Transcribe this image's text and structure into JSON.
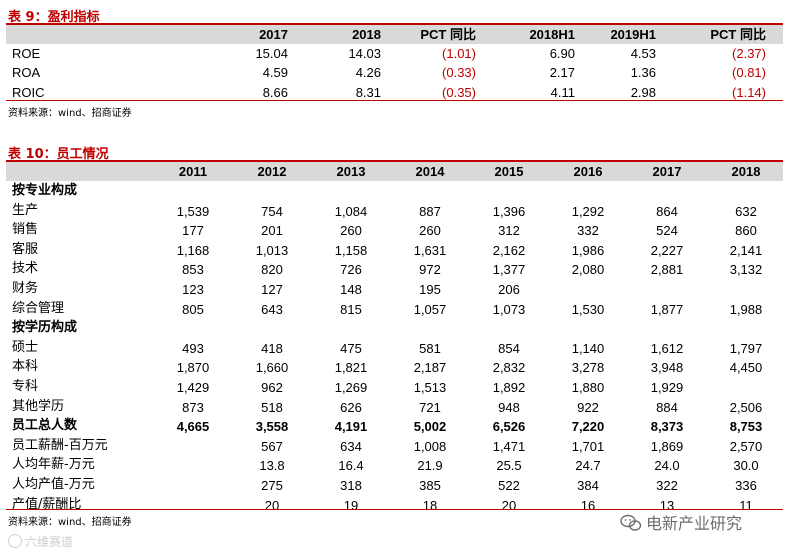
{
  "table9": {
    "title": "表 9：盈利指标",
    "columns": [
      "2017",
      "2018",
      "PCT 同比",
      "2018H1",
      "2019H1",
      "PCT 同比"
    ],
    "rows": [
      {
        "label": "ROE",
        "values": [
          "15.04",
          "14.03",
          "(1.01)",
          "6.90",
          "4.53",
          "(2.37)"
        ]
      },
      {
        "label": "ROA",
        "values": [
          "4.59",
          "4.26",
          "(0.33)",
          "2.17",
          "1.36",
          "(0.81)"
        ]
      },
      {
        "label": "ROIC",
        "values": [
          "8.66",
          "8.31",
          "(0.35)",
          "4.11",
          "2.98",
          "(1.14)"
        ]
      }
    ],
    "source": "资料来源：wind、招商证券"
  },
  "table10": {
    "title": "表 10：员工情况",
    "columns": [
      "2011",
      "2012",
      "2013",
      "2014",
      "2015",
      "2016",
      "2017",
      "2018"
    ],
    "rows": [
      {
        "label": "按专业构成",
        "section": true,
        "values": [
          "",
          "",
          "",
          "",
          "",
          "",
          "",
          ""
        ]
      },
      {
        "label": "生产",
        "values": [
          "1,539",
          "754",
          "1,084",
          "887",
          "1,396",
          "1,292",
          "864",
          "632"
        ]
      },
      {
        "label": "销售",
        "values": [
          "177",
          "201",
          "260",
          "260",
          "312",
          "332",
          "524",
          "860"
        ]
      },
      {
        "label": "客服",
        "values": [
          "1,168",
          "1,013",
          "1,158",
          "1,631",
          "2,162",
          "1,986",
          "2,227",
          "2,141"
        ]
      },
      {
        "label": "技术",
        "values": [
          "853",
          "820",
          "726",
          "972",
          "1,377",
          "2,080",
          "2,881",
          "3,132"
        ]
      },
      {
        "label": "财务",
        "values": [
          "123",
          "127",
          "148",
          "195",
          "206",
          "",
          "",
          ""
        ]
      },
      {
        "label": "综合管理",
        "values": [
          "805",
          "643",
          "815",
          "1,057",
          "1,073",
          "1,530",
          "1,877",
          "1,988"
        ]
      },
      {
        "label": "按学历构成",
        "section": true,
        "values": [
          "",
          "",
          "",
          "",
          "",
          "",
          "",
          ""
        ]
      },
      {
        "label": "硕士",
        "values": [
          "493",
          "418",
          "475",
          "581",
          "854",
          "1,140",
          "1,612",
          "1,797"
        ]
      },
      {
        "label": "本科",
        "values": [
          "1,870",
          "1,660",
          "1,821",
          "2,187",
          "2,832",
          "3,278",
          "3,948",
          "4,450"
        ]
      },
      {
        "label": "专科",
        "values": [
          "1,429",
          "962",
          "1,269",
          "1,513",
          "1,892",
          "1,880",
          "1,929",
          ""
        ]
      },
      {
        "label": "其他学历",
        "values": [
          "873",
          "518",
          "626",
          "721",
          "948",
          "922",
          "884",
          "2,506"
        ]
      },
      {
        "label": "员工总人数",
        "bold": true,
        "values": [
          "4,665",
          "3,558",
          "4,191",
          "5,002",
          "6,526",
          "7,220",
          "8,373",
          "8,753"
        ]
      },
      {
        "label": "员工薪酬-百万元",
        "values": [
          "",
          "567",
          "634",
          "1,008",
          "1,471",
          "1,701",
          "1,869",
          "2,570"
        ]
      },
      {
        "label": "人均年薪-万元",
        "values": [
          "",
          "13.8",
          "16.4",
          "21.9",
          "25.5",
          "24.7",
          "24.0",
          "30.0"
        ]
      },
      {
        "label": "人均产值-万元",
        "values": [
          "",
          "275",
          "318",
          "385",
          "522",
          "384",
          "322",
          "336"
        ]
      },
      {
        "label": "产值/薪酬比",
        "values": [
          "",
          "20",
          "19",
          "18",
          "20",
          "16",
          "13",
          "11"
        ]
      }
    ],
    "source": "资料来源：wind、招商证券"
  },
  "watermarks": {
    "wechat": "电新产业研究",
    "corner": "六维赛道"
  },
  "colors": {
    "accent": "#c00000",
    "header_band": "#d9d9d9"
  }
}
